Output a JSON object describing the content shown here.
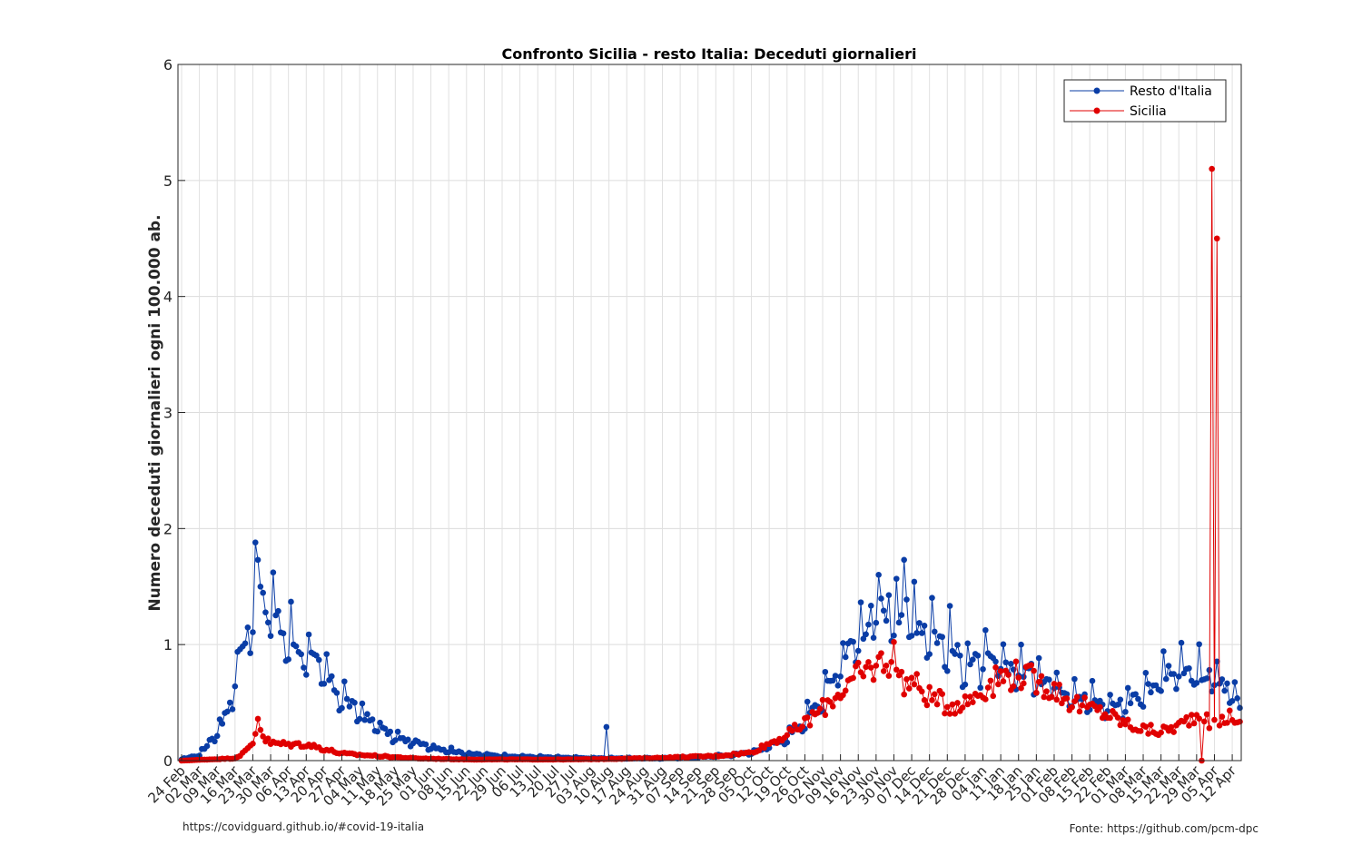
{
  "chart_data": {
    "type": "line",
    "title": "Confronto Sicilia - resto Italia: Deceduti giornalieri",
    "ylabel": "Numero deceduti giornalieri ogni 100.000 ab.",
    "xlabel": "",
    "ylim": [
      0,
      6
    ],
    "yticks": [
      0,
      1,
      2,
      3,
      4,
      5,
      6
    ],
    "x_start": "24 Feb 2020",
    "x_end": "17 Apr 2021",
    "xtick_labels": [
      "24 Feb",
      "02 Mar",
      "09 Mar",
      "16 Mar",
      "23 Mar",
      "30 Mar",
      "06 Apr",
      "13 Apr",
      "20 Apr",
      "27 Apr",
      "04 May",
      "11 May",
      "18 May",
      "25 May",
      "01 Jun",
      "08 Jun",
      "15 Jun",
      "22 Jun",
      "29 Jun",
      "06 Jul",
      "13 Jul",
      "20 Jul",
      "27 Jul",
      "03 Aug",
      "10 Aug",
      "17 Aug",
      "24 Aug",
      "31 Aug",
      "07 Sep",
      "14 Sep",
      "21 Sep",
      "28 Sep",
      "05 Oct",
      "12 Oct",
      "19 Oct",
      "26 Oct",
      "02 Nov",
      "09 Nov",
      "16 Nov",
      "23 Nov",
      "30 Nov",
      "07 Dec",
      "14 Dec",
      "21 Dec",
      "28 Dec",
      "04 Jan",
      "11 Jan",
      "18 Jan",
      "25 Jan",
      "01 Feb",
      "08 Feb",
      "15 Feb",
      "22 Feb",
      "01 Mar",
      "08 Mar",
      "15 Mar",
      "22 Mar",
      "29 Mar",
      "05 Apr",
      "12 Apr"
    ],
    "grid": true,
    "minor_grid": true,
    "legend_position": "top-right",
    "series": [
      {
        "name": "Resto d'Italia",
        "color": "#0a3da6",
        "marker": "filled-circle",
        "keypoints": [
          {
            "week": 0,
            "value": 0.01
          },
          {
            "week": 1,
            "value": 0.05
          },
          {
            "week": 2,
            "value": 0.25
          },
          {
            "week": 2.6,
            "value": 0.45
          },
          {
            "week": 3,
            "value": 0.7
          },
          {
            "week": 3.5,
            "value": 1.05
          },
          {
            "week": 4,
            "value": 1.25
          },
          {
            "week": 4.3,
            "value": 1.72
          },
          {
            "week": 4.6,
            "value": 1.45
          },
          {
            "week": 5,
            "value": 1.3
          },
          {
            "week": 6,
            "value": 1.05
          },
          {
            "week": 7,
            "value": 0.95
          },
          {
            "week": 8,
            "value": 0.75
          },
          {
            "week": 9,
            "value": 0.55
          },
          {
            "week": 10,
            "value": 0.42
          },
          {
            "week": 11,
            "value": 0.3
          },
          {
            "week": 12,
            "value": 0.2
          },
          {
            "week": 13,
            "value": 0.16
          },
          {
            "week": 14,
            "value": 0.12
          },
          {
            "week": 15,
            "value": 0.09
          },
          {
            "week": 16,
            "value": 0.06
          },
          {
            "week": 18,
            "value": 0.04
          },
          {
            "week": 20,
            "value": 0.03
          },
          {
            "week": 23,
            "value": 0.02
          },
          {
            "week": 27,
            "value": 0.02
          },
          {
            "week": 29,
            "value": 0.03
          },
          {
            "week": 31,
            "value": 0.05
          },
          {
            "week": 32,
            "value": 0.07
          },
          {
            "week": 33,
            "value": 0.12
          },
          {
            "week": 34,
            "value": 0.2
          },
          {
            "week": 35,
            "value": 0.35
          },
          {
            "week": 36,
            "value": 0.55
          },
          {
            "week": 37,
            "value": 0.85
          },
          {
            "week": 38,
            "value": 1.1
          },
          {
            "week": 39,
            "value": 1.3
          },
          {
            "week": 40,
            "value": 1.35
          },
          {
            "week": 41,
            "value": 1.25
          },
          {
            "week": 42,
            "value": 1.15
          },
          {
            "week": 43,
            "value": 1.0
          },
          {
            "week": 44,
            "value": 0.85
          },
          {
            "week": 45,
            "value": 0.85
          },
          {
            "week": 46,
            "value": 0.85
          },
          {
            "week": 47,
            "value": 0.8
          },
          {
            "week": 48,
            "value": 0.75
          },
          {
            "week": 49,
            "value": 0.68
          },
          {
            "week": 50,
            "value": 0.6
          },
          {
            "week": 51,
            "value": 0.52
          },
          {
            "week": 52,
            "value": 0.48
          },
          {
            "week": 53,
            "value": 0.5
          },
          {
            "week": 54,
            "value": 0.6
          },
          {
            "week": 55,
            "value": 0.72
          },
          {
            "week": 56,
            "value": 0.78
          },
          {
            "week": 57,
            "value": 0.75
          },
          {
            "week": 58,
            "value": 0.72
          },
          {
            "week": 59,
            "value": 0.6
          },
          {
            "week": 59.4,
            "value": 0.5
          }
        ],
        "spikes": [
          {
            "week": 4.3,
            "value": 1.73
          },
          {
            "week": 40.5,
            "value": 1.73
          },
          {
            "week": 23.8,
            "value": 0.29
          }
        ]
      },
      {
        "name": "Sicilia",
        "color": "#e00000",
        "marker": "filled-circle",
        "keypoints": [
          {
            "week": 0,
            "value": 0.0
          },
          {
            "week": 3,
            "value": 0.02
          },
          {
            "week": 3.6,
            "value": 0.08
          },
          {
            "week": 4,
            "value": 0.15
          },
          {
            "week": 4.3,
            "value": 0.35
          },
          {
            "week": 4.6,
            "value": 0.2
          },
          {
            "week": 5,
            "value": 0.15
          },
          {
            "week": 6,
            "value": 0.14
          },
          {
            "week": 7,
            "value": 0.14
          },
          {
            "week": 8,
            "value": 0.1
          },
          {
            "week": 9,
            "value": 0.06
          },
          {
            "week": 10,
            "value": 0.05
          },
          {
            "week": 11,
            "value": 0.04
          },
          {
            "week": 12,
            "value": 0.03
          },
          {
            "week": 13,
            "value": 0.02
          },
          {
            "week": 16,
            "value": 0.01
          },
          {
            "week": 22,
            "value": 0.01
          },
          {
            "week": 26,
            "value": 0.02
          },
          {
            "week": 28,
            "value": 0.03
          },
          {
            "week": 30,
            "value": 0.04
          },
          {
            "week": 32,
            "value": 0.07
          },
          {
            "week": 33,
            "value": 0.15
          },
          {
            "week": 34,
            "value": 0.22
          },
          {
            "week": 35,
            "value": 0.32
          },
          {
            "week": 36,
            "value": 0.45
          },
          {
            "week": 37,
            "value": 0.6
          },
          {
            "week": 38,
            "value": 0.72
          },
          {
            "week": 39,
            "value": 0.82
          },
          {
            "week": 40,
            "value": 0.9
          },
          {
            "week": 40.5,
            "value": 0.68
          },
          {
            "week": 41,
            "value": 0.68
          },
          {
            "week": 42,
            "value": 0.55
          },
          {
            "week": 43,
            "value": 0.48
          },
          {
            "week": 44,
            "value": 0.5
          },
          {
            "week": 45,
            "value": 0.62
          },
          {
            "week": 46,
            "value": 0.72
          },
          {
            "week": 47,
            "value": 0.75
          },
          {
            "week": 48,
            "value": 0.68
          },
          {
            "week": 49,
            "value": 0.62
          },
          {
            "week": 50,
            "value": 0.5
          },
          {
            "week": 51,
            "value": 0.45
          },
          {
            "week": 52,
            "value": 0.4
          },
          {
            "week": 53,
            "value": 0.32
          },
          {
            "week": 54,
            "value": 0.27
          },
          {
            "week": 55,
            "value": 0.25
          },
          {
            "week": 56,
            "value": 0.3
          },
          {
            "week": 57,
            "value": 0.4
          },
          {
            "week": 58,
            "value": 0.3
          },
          {
            "week": 59,
            "value": 0.4
          },
          {
            "week": 59.4,
            "value": 0.3
          }
        ],
        "spikes": [
          {
            "week": 57.35,
            "value": 0.0
          },
          {
            "week": 57.9,
            "value": 5.1
          },
          {
            "week": 58.1,
            "value": 4.5
          },
          {
            "week": 4.3,
            "value": 0.36
          }
        ]
      }
    ]
  },
  "footer": {
    "left": "https://covidguard.github.io/#covid-19-italia",
    "right": "Fonte: https://github.com/pcm-dpc"
  }
}
